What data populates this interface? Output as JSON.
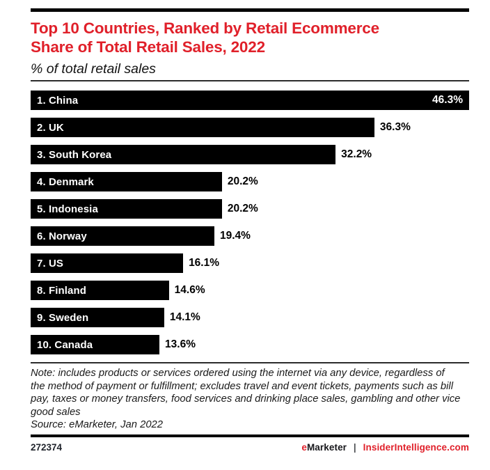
{
  "page": {
    "title": "Top 10 Countries, Ranked by Retail Ecommerce Share of Total Retail Sales, 2022",
    "title_lines": [
      "Top 10 Countries, Ranked by Retail Ecommerce",
      "Share of Total Retail Sales, 2022"
    ],
    "subtitle": "% of total retail sales",
    "note": "Note: includes products or services ordered using the internet via any device, regardless of the method of payment or fulfillment; excludes travel and event tickets, payments such as bill pay, taxes or money transfers, food services and drinking place sales, gambling and other vice good sales",
    "source": "Source: eMarketer, Jan 2022",
    "footer": {
      "chart_id": "272374",
      "brand_e": "e",
      "brand_rest": "Marketer",
      "separator": "|",
      "site": "InsiderIntelligence.com"
    },
    "colors": {
      "accent_red": "#e0202a",
      "bar_black": "#000000"
    }
  },
  "chart_data": {
    "type": "bar",
    "orientation": "horizontal",
    "title": "Top 10 Countries, Ranked by Retail Ecommerce Share of Total Retail Sales, 2022",
    "ylabel": "% of total retail sales",
    "categories": [
      "China",
      "UK",
      "South Korea",
      "Denmark",
      "Indonesia",
      "Norway",
      "US",
      "Finland",
      "Sweden",
      "Canada"
    ],
    "rank_labels": [
      "1. China",
      "2. UK",
      "3. South Korea",
      "4. Denmark",
      "5. Indonesia",
      "6. Norway",
      "7. US",
      "8. Finland",
      "9. Sweden",
      "10. Canada"
    ],
    "values": [
      46.3,
      36.3,
      32.2,
      20.2,
      20.2,
      19.4,
      16.1,
      14.6,
      14.1,
      13.6
    ],
    "value_labels": [
      "46.3%",
      "36.3%",
      "32.2%",
      "20.2%",
      "20.2%",
      "19.4%",
      "16.1%",
      "14.6%",
      "14.1%",
      "13.6%"
    ],
    "xlim": [
      0,
      46.3
    ],
    "value_label_inside_first_bar": true,
    "legend": "none",
    "grid": false,
    "bar_color": "#000000"
  }
}
